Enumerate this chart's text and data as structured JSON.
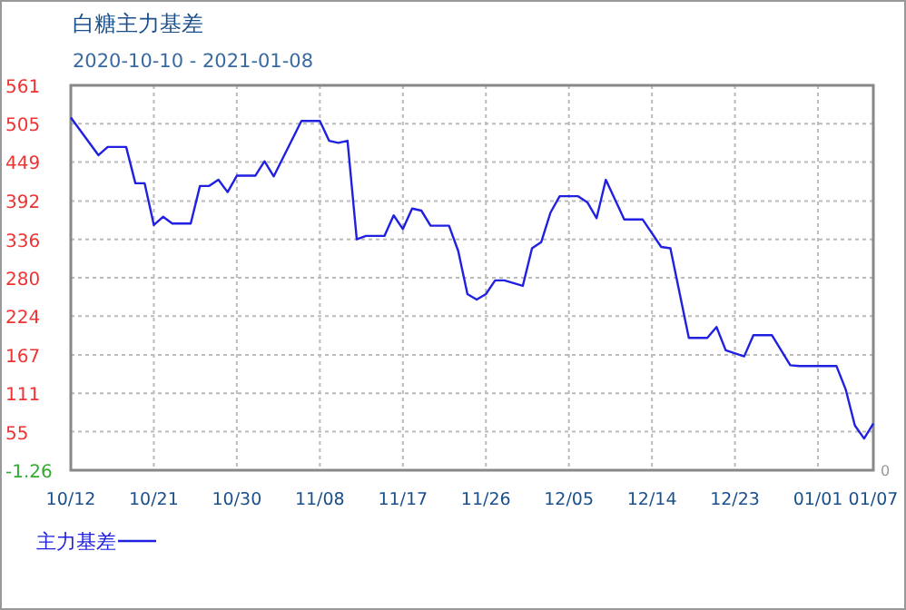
{
  "chart_data": {
    "type": "line",
    "title": "白糖主力基差",
    "subtitle": "2020-10-10 - 2021-01-08",
    "x": [
      "2020-10-12",
      "2020-10-15",
      "2020-10-16",
      "2020-10-18",
      "2020-10-19",
      "2020-10-20",
      "2020-10-21",
      "2020-10-22",
      "2020-10-23",
      "2020-10-25",
      "2020-10-26",
      "2020-10-27",
      "2020-10-28",
      "2020-10-29",
      "2020-10-30",
      "2020-11-01",
      "2020-11-02",
      "2020-11-03",
      "2020-11-06",
      "2020-11-08",
      "2020-11-09",
      "2020-11-10",
      "2020-11-11",
      "2020-11-12",
      "2020-11-13",
      "2020-11-15",
      "2020-11-16",
      "2020-11-17",
      "2020-11-18",
      "2020-11-19",
      "2020-11-20",
      "2020-11-22",
      "2020-11-23",
      "2020-11-24",
      "2020-11-25",
      "2020-11-26",
      "2020-11-27",
      "2020-11-28",
      "2020-11-30",
      "2020-12-01",
      "2020-12-02",
      "2020-12-03",
      "2020-12-04",
      "2020-12-06",
      "2020-12-07",
      "2020-12-08",
      "2020-12-09",
      "2020-12-11",
      "2020-12-13",
      "2020-12-15",
      "2020-12-16",
      "2020-12-18",
      "2020-12-20",
      "2020-12-21",
      "2020-12-22",
      "2020-12-24",
      "2020-12-25",
      "2020-12-27",
      "2020-12-29",
      "2020-12-30",
      "2021-01-03",
      "2021-01-04",
      "2021-01-05",
      "2021-01-06",
      "2021-01-07"
    ],
    "series": [
      {
        "name": "主力基差",
        "color": "#2020e0",
        "values": [
          514,
          459,
          471,
          471,
          418,
          418,
          357,
          369,
          359,
          359,
          414,
          414,
          423,
          405,
          429,
          429,
          450,
          428,
          509,
          509,
          480,
          477,
          480,
          336,
          341,
          341,
          371,
          351,
          381,
          378,
          356,
          356,
          319,
          256,
          248,
          256,
          276,
          276,
          268,
          323,
          332,
          375,
          399,
          399,
          390,
          367,
          423,
          365,
          365,
          325,
          323,
          192,
          192,
          208,
          174,
          165,
          196,
          196,
          152,
          151,
          151,
          117,
          64,
          45,
          67
        ]
      }
    ],
    "xlim": [
      "2020-10-12",
      "2021-01-07"
    ],
    "xticks": [
      {
        "value": "2020-10-12",
        "label": "10/12"
      },
      {
        "value": "2020-10-21",
        "label": "10/21"
      },
      {
        "value": "2020-10-30",
        "label": "10/30"
      },
      {
        "value": "2020-11-08",
        "label": "11/08"
      },
      {
        "value": "2020-11-17",
        "label": "11/17"
      },
      {
        "value": "2020-11-26",
        "label": "11/26"
      },
      {
        "value": "2020-12-05",
        "label": "12/05"
      },
      {
        "value": "2020-12-14",
        "label": "12/14"
      },
      {
        "value": "2020-12-23",
        "label": "12/23"
      },
      {
        "value": "2021-01-01",
        "label": "01/01"
      },
      {
        "value": "2021-01-07",
        "label": "01/07"
      }
    ],
    "ylim": [
      -1.26,
      561
    ],
    "yticks": [
      -1.26,
      55,
      111,
      167,
      224,
      280,
      336,
      392,
      449,
      505,
      561
    ],
    "annotations": [
      "0"
    ],
    "grid": true,
    "legend": "bottom left",
    "marker": "none",
    "line_style": "solid"
  }
}
